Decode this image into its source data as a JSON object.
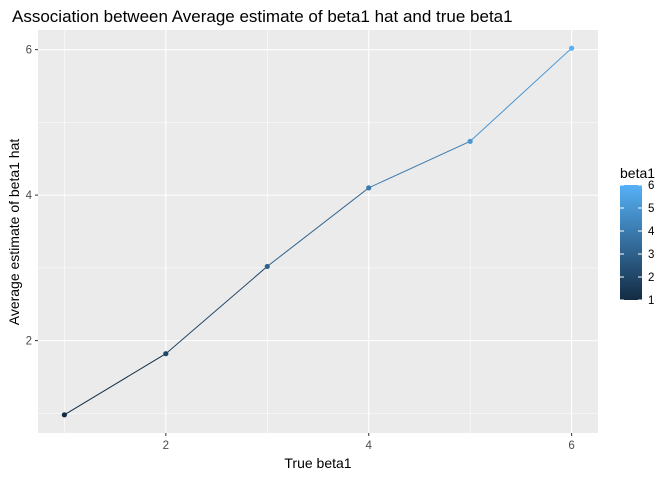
{
  "chart_data": {
    "type": "line",
    "title": "Association between Average estimate of beta1 hat and true beta1",
    "xlabel": "True beta1",
    "ylabel": "Average estimate of beta1 hat",
    "x": [
      1,
      2,
      3,
      4,
      5,
      6
    ],
    "series": [
      {
        "values": [
          0.98,
          1.82,
          3.02,
          4.1,
          4.74,
          6.02
        ]
      }
    ],
    "xlim": [
      0.74,
      6.26
    ],
    "ylim": [
      0.73,
      6.27
    ],
    "xticks": [
      "2",
      "4",
      "6"
    ],
    "yticks": [
      "2",
      "4",
      "6"
    ],
    "grid": true,
    "panel_background": "#ebebeb",
    "grid_color": "#ffffff",
    "legend": {
      "title": "beta1",
      "placement": "right",
      "labels": [
        "6",
        "5",
        "4",
        "3",
        "2",
        "1"
      ],
      "min": 1,
      "max": 6,
      "color_low": "#132b43",
      "color_high": "#56b1f7"
    }
  }
}
